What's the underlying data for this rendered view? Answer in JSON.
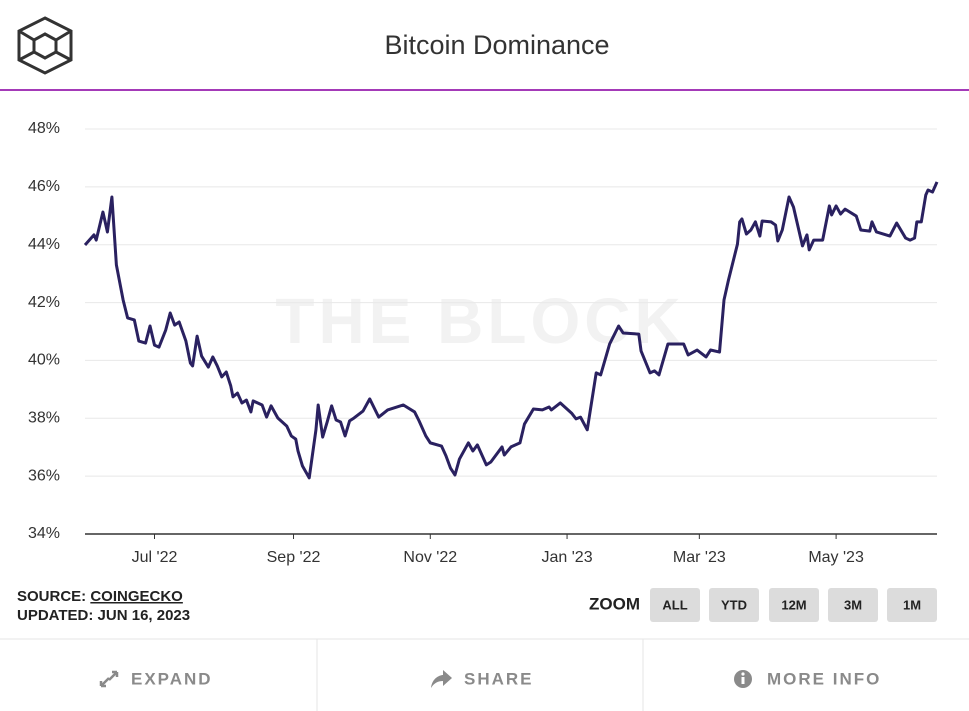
{
  "chart_data": {
    "type": "line",
    "title": "Bitcoin Dominance",
    "watermark": "THE BLOCK",
    "x": [
      0,
      4,
      5,
      8,
      10,
      12,
      14,
      17,
      19,
      22,
      24,
      27,
      29,
      31,
      33,
      36,
      38,
      40,
      42,
      45,
      47,
      48,
      50,
      52,
      55,
      57,
      59,
      61,
      63,
      65,
      66,
      68,
      70,
      72,
      74,
      75,
      79,
      81,
      83,
      86,
      90,
      92,
      94,
      95,
      97,
      100,
      103,
      104,
      106,
      108,
      110,
      112,
      114,
      116,
      118,
      120,
      124,
      127,
      131,
      135,
      142,
      147,
      149,
      152,
      154,
      159,
      161,
      163,
      165,
      167,
      171,
      173,
      175,
      179,
      181,
      186,
      187,
      190,
      194,
      196,
      200,
      204,
      207,
      208,
      212,
      217,
      219,
      221,
      224,
      228,
      230,
      234,
      238,
      240,
      247,
      248,
      252,
      254,
      256,
      260,
      267,
      269,
      273,
      277,
      279,
      283,
      285,
      287,
      291,
      292,
      293,
      295,
      297,
      299,
      301,
      302,
      306,
      308,
      309,
      311,
      314,
      316,
      320,
      322,
      323,
      325,
      329,
      332,
      333,
      335,
      337,
      339,
      344,
      346,
      350,
      351,
      353,
      359,
      362,
      366,
      368,
      370,
      371,
      373,
      375,
      376,
      378,
      380
    ],
    "series": [
      {
        "name": "Bitcoin Dominance",
        "color": "#2a2160",
        "values": [
          43.99,
          44.34,
          44.16,
          45.13,
          44.44,
          45.65,
          43.3,
          42.09,
          41.47,
          41.4,
          40.67,
          40.6,
          41.19,
          40.53,
          40.46,
          41.05,
          41.64,
          41.22,
          41.33,
          40.67,
          39.91,
          39.81,
          40.84,
          40.15,
          39.77,
          40.12,
          39.81,
          39.43,
          39.6,
          39.12,
          38.74,
          38.87,
          38.53,
          38.63,
          38.22,
          38.6,
          38.46,
          38.04,
          38.43,
          38.01,
          37.73,
          37.39,
          37.28,
          36.87,
          36.35,
          35.94,
          37.6,
          38.46,
          37.35,
          37.87,
          38.43,
          37.94,
          37.87,
          37.39,
          37.91,
          38.01,
          38.25,
          38.67,
          38.04,
          38.29,
          38.46,
          38.22,
          37.91,
          37.39,
          37.15,
          37.04,
          36.7,
          36.28,
          36.04,
          36.59,
          37.15,
          36.87,
          37.08,
          36.39,
          36.49,
          37.01,
          36.73,
          37.01,
          37.15,
          37.8,
          38.32,
          38.29,
          38.39,
          38.29,
          38.53,
          38.18,
          37.98,
          38.04,
          37.6,
          39.57,
          39.5,
          40.57,
          41.19,
          40.95,
          40.91,
          40.33,
          39.57,
          39.64,
          39.5,
          40.57,
          40.57,
          40.19,
          40.36,
          40.12,
          40.36,
          40.29,
          42.09,
          42.78,
          44.02,
          44.79,
          44.89,
          44.37,
          44.51,
          44.79,
          44.3,
          44.82,
          44.79,
          44.68,
          44.13,
          44.51,
          45.65,
          45.3,
          43.96,
          44.34,
          43.82,
          44.16,
          44.16,
          45.34,
          45.03,
          45.34,
          45.06,
          45.23,
          44.99,
          44.51,
          44.47,
          44.79,
          44.44,
          44.3,
          44.75,
          44.23,
          44.16,
          44.23,
          44.79,
          44.79,
          45.72,
          45.89,
          45.82,
          46.17
        ]
      }
    ],
    "xlim": [
      0,
      380
    ],
    "xticks": [
      {
        "value": 31,
        "label": "Jul '22"
      },
      {
        "value": 93,
        "label": "Sep '22"
      },
      {
        "value": 154,
        "label": "Nov '22"
      },
      {
        "value": 215,
        "label": "Jan '23"
      },
      {
        "value": 274,
        "label": "Mar '23"
      },
      {
        "value": 335,
        "label": "May '23"
      }
    ],
    "ylim": [
      34,
      48
    ],
    "yticks": [
      {
        "value": 34,
        "label": "34%"
      },
      {
        "value": 36,
        "label": "36%"
      },
      {
        "value": 38,
        "label": "38%"
      },
      {
        "value": 40,
        "label": "40%"
      },
      {
        "value": 42,
        "label": "42%"
      },
      {
        "value": 44,
        "label": "44%"
      },
      {
        "value": 46,
        "label": "46%"
      },
      {
        "value": 48,
        "label": "48%"
      }
    ],
    "grid": true
  },
  "source": {
    "label": "SOURCE:",
    "name": "COINGECKO",
    "updated": "UPDATED: JUN 16, 2023"
  },
  "zoom": {
    "label": "ZOOM",
    "buttons": [
      "ALL",
      "YTD",
      "12M",
      "3M",
      "1M"
    ]
  },
  "footer": {
    "expand": "EXPAND",
    "share": "SHARE",
    "info": "MORE INFO"
  }
}
